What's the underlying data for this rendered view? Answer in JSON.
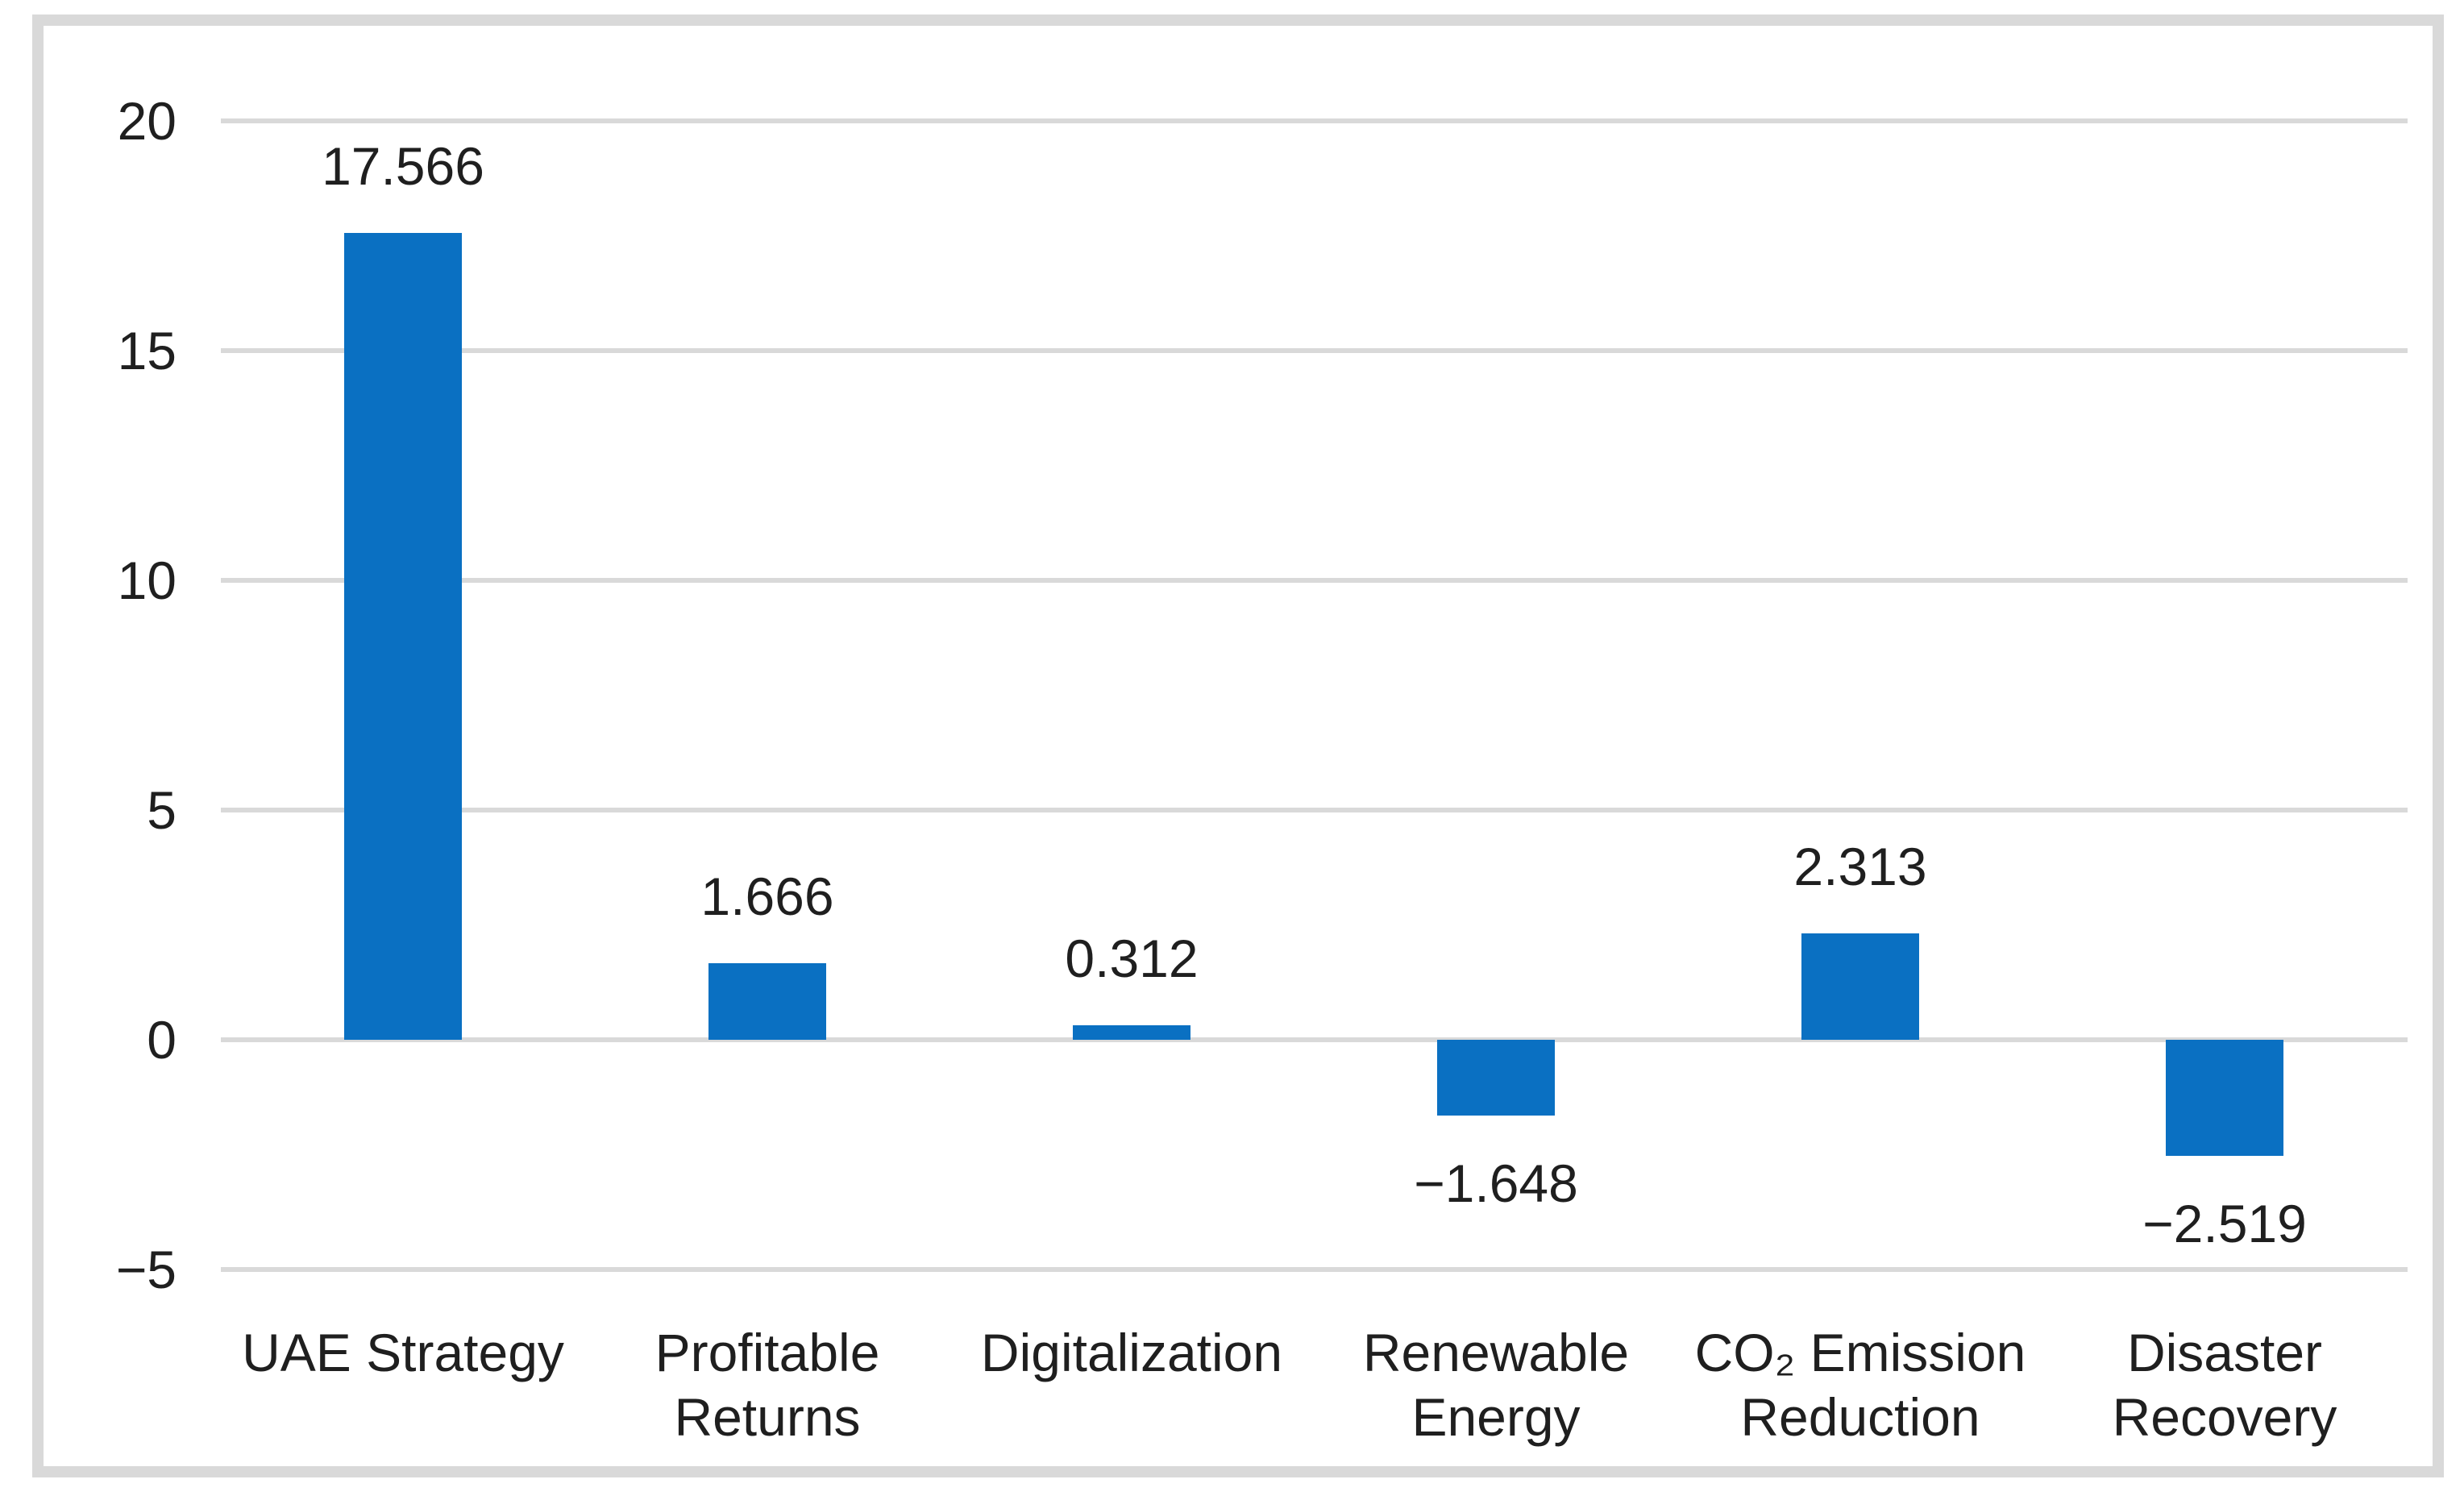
{
  "chart_data": {
    "type": "bar",
    "categories": [
      "UAE Strategy",
      "Profitable Returns",
      "Digitalization",
      "Renewable Energy",
      "CO2 Emission Reduction",
      "Disaster Recovery"
    ],
    "values": [
      17.566,
      1.666,
      0.312,
      -1.648,
      2.313,
      -2.519
    ],
    "title": "",
    "xlabel": "",
    "ylabel": "",
    "ylim": [
      -5,
      20
    ],
    "ytick_interval": 5,
    "yticks": [
      20,
      15,
      10,
      5,
      0,
      -5
    ],
    "grid": true,
    "legend": false,
    "data_labels": true,
    "bar_color": "#0a70c2",
    "gridline_color": "#d9d9d9",
    "frame_border_color": "#d9d9d9",
    "text_color": "#1f1f1f",
    "background_color": "#ffffff"
  },
  "y_axis": {
    "ticks": [
      "20",
      "15",
      "10",
      "5",
      "0",
      "−5"
    ]
  },
  "x_axis": {
    "tick_labels": [
      "UAE Strategy",
      "Profitable\nReturns",
      "Digitalization",
      "Renewable\nEnergy",
      "CO₂ Emission\nReduction",
      "Disaster\nRecovery"
    ]
  },
  "bars": [
    {
      "category": "UAE Strategy",
      "label": "17.566"
    },
    {
      "category": "Profitable Returns",
      "label": "1.666"
    },
    {
      "category": "Digitalization",
      "label": "0.312"
    },
    {
      "category": "Renewable Energy",
      "label": "−1.648"
    },
    {
      "category": "CO2 Emission Reduction",
      "label": "2.313"
    },
    {
      "category": "Disaster Recovery",
      "label": "−2.519"
    }
  ]
}
